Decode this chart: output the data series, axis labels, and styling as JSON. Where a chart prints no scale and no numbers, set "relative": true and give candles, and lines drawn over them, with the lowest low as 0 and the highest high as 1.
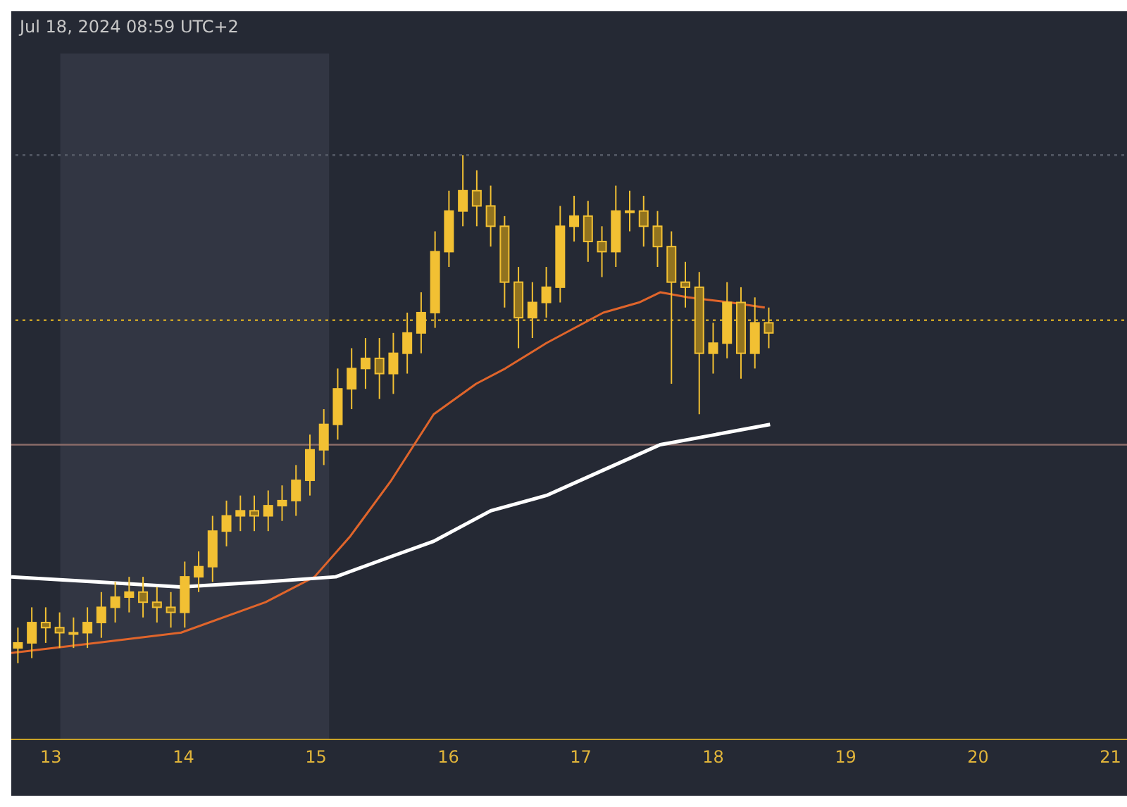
{
  "chart_data": {
    "type": "candlestick",
    "relative": true,
    "color": "#f2c033",
    "annotations": [
      "Jul 18, 2024 08:59 UTC+2"
    ],
    "xlim": [
      12.7,
      21.21
    ],
    "xticks": [
      13,
      14,
      15,
      16,
      17,
      18,
      19,
      20,
      21
    ],
    "grid": false,
    "legend": false,
    "x": [
      12.75,
      12.855,
      12.96,
      13.065,
      13.17,
      13.275,
      13.38,
      13.485,
      13.59,
      13.695,
      13.8,
      13.905,
      14.01,
      14.115,
      14.22,
      14.325,
      14.43,
      14.535,
      14.64,
      14.745,
      14.85,
      14.955,
      15.06,
      15.165,
      15.27,
      15.375,
      15.48,
      15.585,
      15.69,
      15.795,
      15.9,
      16.005,
      16.11,
      16.215,
      16.32,
      16.425,
      16.53,
      16.635,
      16.74,
      16.845,
      16.95,
      17.055,
      17.16,
      17.265,
      17.37,
      17.475,
      17.58,
      17.685,
      17.79,
      17.895,
      18.0,
      18.105,
      18.21,
      18.315,
      18.42
    ],
    "ohlc": [
      [
        0.03,
        0.07,
        0,
        0.04
      ],
      [
        0.04,
        0.11,
        0.01,
        0.08
      ],
      [
        0.08,
        0.11,
        0.04,
        0.07
      ],
      [
        0.07,
        0.1,
        0.03,
        0.06
      ],
      [
        0.06,
        0.09,
        0.03,
        0.06
      ],
      [
        0.06,
        0.11,
        0.03,
        0.08
      ],
      [
        0.08,
        0.14,
        0.05,
        0.11
      ],
      [
        0.11,
        0.16,
        0.08,
        0.13
      ],
      [
        0.13,
        0.17,
        0.1,
        0.14
      ],
      [
        0.14,
        0.17,
        0.09,
        0.12
      ],
      [
        0.12,
        0.15,
        0.08,
        0.11
      ],
      [
        0.11,
        0.14,
        0.07,
        0.1
      ],
      [
        0.1,
        0.2,
        0.07,
        0.17
      ],
      [
        0.17,
        0.22,
        0.14,
        0.19
      ],
      [
        0.19,
        0.29,
        0.16,
        0.26
      ],
      [
        0.26,
        0.32,
        0.23,
        0.29
      ],
      [
        0.29,
        0.33,
        0.26,
        0.3
      ],
      [
        0.3,
        0.33,
        0.26,
        0.29
      ],
      [
        0.29,
        0.34,
        0.26,
        0.31
      ],
      [
        0.31,
        0.35,
        0.28,
        0.32
      ],
      [
        0.32,
        0.39,
        0.29,
        0.36
      ],
      [
        0.36,
        0.45,
        0.33,
        0.42
      ],
      [
        0.42,
        0.5,
        0.39,
        0.47
      ],
      [
        0.47,
        0.58,
        0.44,
        0.54
      ],
      [
        0.54,
        0.62,
        0.5,
        0.58
      ],
      [
        0.58,
        0.64,
        0.54,
        0.6
      ],
      [
        0.6,
        0.64,
        0.52,
        0.57
      ],
      [
        0.57,
        0.65,
        0.53,
        0.61
      ],
      [
        0.61,
        0.69,
        0.57,
        0.65
      ],
      [
        0.65,
        0.73,
        0.61,
        0.69
      ],
      [
        0.69,
        0.85,
        0.66,
        0.81
      ],
      [
        0.81,
        0.93,
        0.78,
        0.89
      ],
      [
        0.89,
        1.0,
        0.86,
        0.93
      ],
      [
        0.93,
        0.97,
        0.86,
        0.9
      ],
      [
        0.9,
        0.94,
        0.82,
        0.86
      ],
      [
        0.86,
        0.88,
        0.7,
        0.75
      ],
      [
        0.75,
        0.78,
        0.62,
        0.68
      ],
      [
        0.68,
        0.75,
        0.64,
        0.71
      ],
      [
        0.71,
        0.78,
        0.68,
        0.74
      ],
      [
        0.74,
        0.9,
        0.71,
        0.86
      ],
      [
        0.86,
        0.92,
        0.83,
        0.88
      ],
      [
        0.88,
        0.91,
        0.79,
        0.83
      ],
      [
        0.83,
        0.86,
        0.76,
        0.81
      ],
      [
        0.81,
        0.94,
        0.78,
        0.89
      ],
      [
        0.89,
        0.93,
        0.85,
        0.89
      ],
      [
        0.89,
        0.92,
        0.82,
        0.86
      ],
      [
        0.86,
        0.89,
        0.78,
        0.82
      ],
      [
        0.82,
        0.85,
        0.55,
        0.75
      ],
      [
        0.75,
        0.79,
        0.7,
        0.74
      ],
      [
        0.74,
        0.77,
        0.49,
        0.61
      ],
      [
        0.61,
        0.67,
        0.57,
        0.63
      ],
      [
        0.63,
        0.75,
        0.6,
        0.71
      ],
      [
        0.71,
        0.74,
        0.56,
        0.61
      ],
      [
        0.61,
        0.72,
        0.58,
        0.67
      ],
      [
        0.67,
        0.7,
        0.62,
        0.65
      ]
    ],
    "series": [
      {
        "type": "line",
        "color": "#e0652b",
        "x": [
          12.7,
          13.34,
          13.98,
          14.62,
          14.99,
          15.26,
          15.57,
          15.89,
          16.21,
          16.43,
          16.74,
          17.17,
          17.44,
          17.6,
          17.81,
          18.13,
          18.39
        ],
        "values": [
          0.02,
          0.04,
          0.06,
          0.12,
          0.17,
          0.25,
          0.36,
          0.49,
          0.55,
          0.58,
          0.63,
          0.69,
          0.71,
          0.73,
          0.72,
          0.71,
          0.7
        ]
      },
      {
        "type": "line",
        "color": "#ffffff",
        "x": [
          12.7,
          13.34,
          13.98,
          14.62,
          15.15,
          15.57,
          15.89,
          16.32,
          16.74,
          17.17,
          17.6,
          18.02,
          18.43
        ],
        "values": [
          0.17,
          0.16,
          0.15,
          0.16,
          0.17,
          0.21,
          0.24,
          0.3,
          0.33,
          0.38,
          0.43,
          0.45,
          0.47
        ]
      }
    ],
    "ref_lines": [
      {
        "axis": "y",
        "value": 1.0,
        "color": "#555a66",
        "line_style": "dotted"
      },
      {
        "axis": "y",
        "value": 0.675,
        "color": "#c9a227",
        "line_style": "dotted"
      },
      {
        "axis": "y",
        "value": 0.43,
        "color": "#8a6b68",
        "line_style": "solid"
      }
    ],
    "bands": [
      {
        "axis": "x",
        "from": 13.07,
        "to": 15.1,
        "color": "#323643"
      }
    ]
  }
}
